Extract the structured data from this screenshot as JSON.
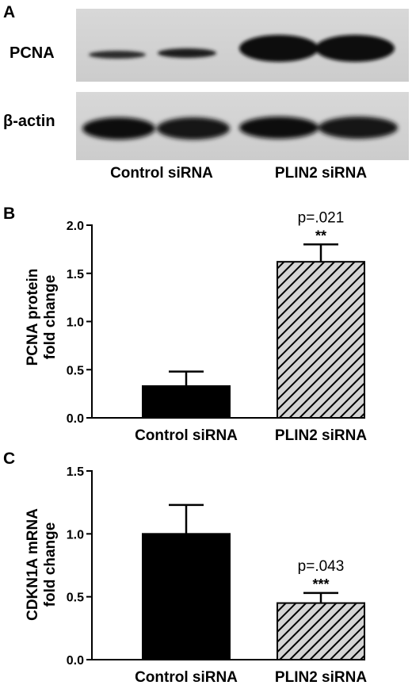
{
  "panels": {
    "a": {
      "letter": "A",
      "row1_label": "PCNA",
      "row2_label": "β-actin",
      "lanes": [
        "Control siRNA",
        "PLIN2 siRNA"
      ]
    },
    "b": {
      "letter": "B"
    },
    "c": {
      "letter": "C"
    }
  },
  "colors": {
    "control_bar": "#000000",
    "plin2_fill": "#d4d4d4",
    "hatch": "#000000"
  },
  "chart_data": [
    {
      "type": "bar",
      "panel": "B",
      "categories": [
        "Control siRNA",
        "PLIN2 siRNA"
      ],
      "values": [
        0.33,
        1.62
      ],
      "errors": [
        0.15,
        0.18
      ],
      "ylabel": [
        "PCNA protein",
        "fold change"
      ],
      "ylim": [
        0,
        2.0
      ],
      "yticks": [
        "0.0",
        "0.5",
        "1.0",
        "1.5",
        "2.0"
      ],
      "annotations": [
        {
          "category": "PLIN2 siRNA",
          "pvalue": "p=.021",
          "stars": "**"
        }
      ]
    },
    {
      "type": "bar",
      "panel": "C",
      "categories": [
        "Control siRNA",
        "PLIN2 siRNA"
      ],
      "values": [
        1.0,
        0.45
      ],
      "errors": [
        0.23,
        0.08
      ],
      "ylabel": [
        "CDKN1A mRNA",
        "fold change"
      ],
      "ylim": [
        0,
        1.5
      ],
      "yticks": [
        "0.0",
        "0.5",
        "1.0",
        "1.5"
      ],
      "annotations": [
        {
          "category": "PLIN2 siRNA",
          "pvalue": "p=.043",
          "stars": "***"
        }
      ]
    }
  ]
}
